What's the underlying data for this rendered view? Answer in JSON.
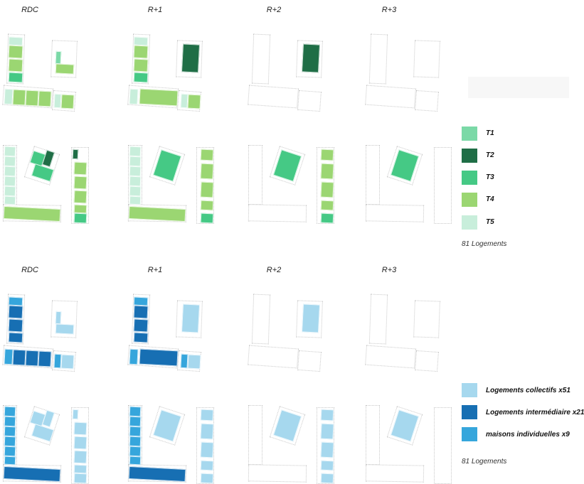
{
  "levels": [
    "RDC",
    "R+1",
    "R+2",
    "R+3"
  ],
  "typology_legend": {
    "items": [
      {
        "label": "T1",
        "color": "#7bd9a7"
      },
      {
        "label": "T2",
        "color": "#1f6e46"
      },
      {
        "label": "T3",
        "color": "#45c985"
      },
      {
        "label": "T4",
        "color": "#9bd672"
      },
      {
        "label": "T5",
        "color": "#c8eedb"
      }
    ],
    "total": "81 Logements"
  },
  "housing_legend": {
    "items": [
      {
        "label": "Logements collectifs x51",
        "color": "#a6d8ee"
      },
      {
        "label": "Logements intermédiaire x21",
        "color": "#176fb3"
      },
      {
        "label": "maisons individuelles x9",
        "color": "#36a6dc"
      }
    ],
    "total": "81 Logements"
  }
}
